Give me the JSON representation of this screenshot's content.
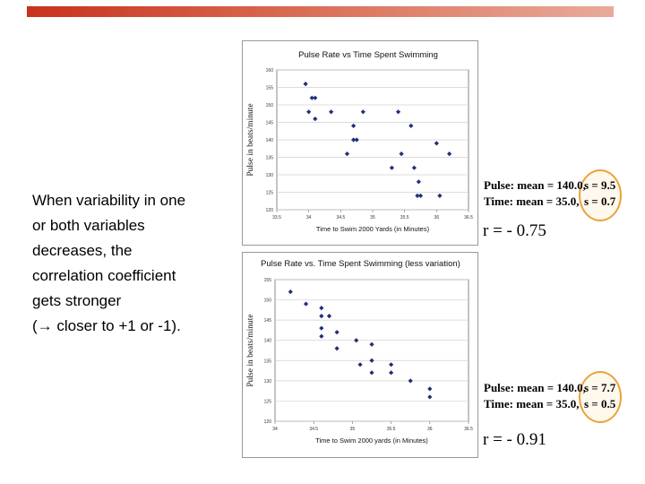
{
  "slide": {
    "text_lines": [
      "When variability in one",
      "or both variables",
      "decreases, the",
      "correlation coefficient",
      "gets stronger",
      "(→ closer to +1 or -1)."
    ],
    "stats1": {
      "pulse_mean": "Pulse: mean = 140.0,",
      "pulse_sd": "s = 9.5",
      "time_mean": "Time: mean =   35.0,",
      "time_sd": "s = 0.7",
      "r": "r = - 0.75"
    },
    "stats2": {
      "pulse_mean": "Pulse: mean = 140.0,",
      "pulse_sd": "s = 7.7",
      "time_mean": "Time: mean =    35.0,",
      "time_sd": "s = 0.5",
      "r": "r = - 0.91"
    },
    "colors": {
      "accent_bar": "#c8321e",
      "marker": "#1f2f7a",
      "highlight_ring": "#e8a33a"
    }
  },
  "chart_data": [
    {
      "type": "scatter",
      "title": "Pulse Rate vs Time Spent Swimming",
      "xlabel": "Time to Swim 2000 Yards (in Minutes)",
      "ylabel": "Pulse in beats/minute",
      "xlim": [
        33.5,
        36.5
      ],
      "ylim": [
        120,
        160
      ],
      "xticks": [
        33.5,
        34,
        34.5,
        35,
        35.5,
        36,
        36.5
      ],
      "xtick_labels": [
        "33.5",
        "34",
        "34.5",
        "35",
        "35.5",
        "36",
        "36.5"
      ],
      "yticks": [
        120,
        125,
        130,
        135,
        140,
        145,
        150,
        155,
        160
      ],
      "ytick_labels": [
        "120",
        "125",
        "130",
        "135",
        "140",
        "145",
        "150",
        "155",
        "160"
      ],
      "grid": true,
      "points": [
        {
          "x": 33.95,
          "y": 156
        },
        {
          "x": 34.0,
          "y": 148
        },
        {
          "x": 34.05,
          "y": 152
        },
        {
          "x": 34.1,
          "y": 152
        },
        {
          "x": 34.1,
          "y": 146
        },
        {
          "x": 34.35,
          "y": 148
        },
        {
          "x": 34.6,
          "y": 136
        },
        {
          "x": 34.7,
          "y": 144
        },
        {
          "x": 34.7,
          "y": 140
        },
        {
          "x": 34.75,
          "y": 140
        },
        {
          "x": 34.85,
          "y": 148
        },
        {
          "x": 35.3,
          "y": 132
        },
        {
          "x": 35.4,
          "y": 148
        },
        {
          "x": 35.45,
          "y": 136
        },
        {
          "x": 35.6,
          "y": 144
        },
        {
          "x": 35.65,
          "y": 132
        },
        {
          "x": 35.7,
          "y": 124
        },
        {
          "x": 35.72,
          "y": 128
        },
        {
          "x": 35.75,
          "y": 124
        },
        {
          "x": 36.0,
          "y": 139
        },
        {
          "x": 36.05,
          "y": 124
        },
        {
          "x": 36.2,
          "y": 136
        }
      ]
    },
    {
      "type": "scatter",
      "title": "Pulse Rate vs. Time Spent Swimming (less variation)",
      "xlabel": "Time to Swim 2000 yards (in Minutes)",
      "ylabel": "Pulse in beats/minute",
      "xlim": [
        34,
        36.5
      ],
      "ylim": [
        120,
        155
      ],
      "xticks": [
        34,
        34.5,
        35,
        35.5,
        36,
        36.5
      ],
      "xtick_labels": [
        "34",
        "34.5",
        "35",
        "35.5",
        "36",
        "36.5"
      ],
      "yticks": [
        120,
        125,
        130,
        135,
        140,
        145,
        150,
        155
      ],
      "ytick_labels": [
        "120",
        "125",
        "130",
        "135",
        "140",
        "145",
        "150",
        "155"
      ],
      "grid": true,
      "points": [
        {
          "x": 34.2,
          "y": 152
        },
        {
          "x": 34.4,
          "y": 149
        },
        {
          "x": 34.6,
          "y": 148
        },
        {
          "x": 34.6,
          "y": 146
        },
        {
          "x": 34.6,
          "y": 143
        },
        {
          "x": 34.6,
          "y": 141
        },
        {
          "x": 34.7,
          "y": 146
        },
        {
          "x": 34.8,
          "y": 142
        },
        {
          "x": 34.8,
          "y": 138
        },
        {
          "x": 35.05,
          "y": 140
        },
        {
          "x": 35.1,
          "y": 134
        },
        {
          "x": 35.25,
          "y": 139
        },
        {
          "x": 35.25,
          "y": 132
        },
        {
          "x": 35.25,
          "y": 135
        },
        {
          "x": 35.5,
          "y": 134
        },
        {
          "x": 35.5,
          "y": 132
        },
        {
          "x": 35.75,
          "y": 130
        },
        {
          "x": 36.0,
          "y": 128
        },
        {
          "x": 36.0,
          "y": 126
        }
      ]
    }
  ]
}
